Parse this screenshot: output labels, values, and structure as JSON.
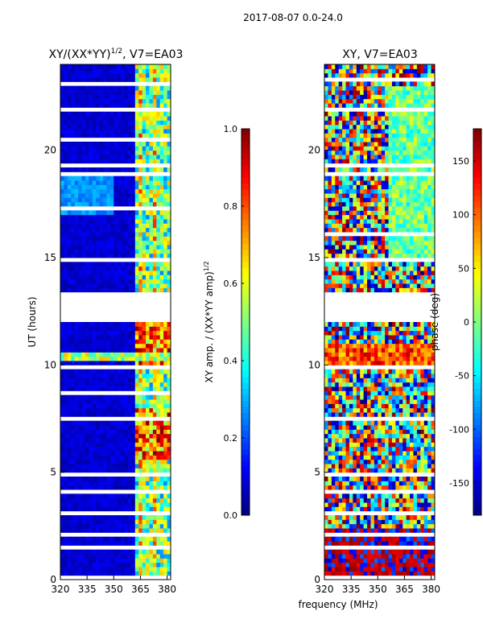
{
  "suptitle": "2017-08-07 0.0-24.0",
  "chart_data": [
    {
      "type": "heatmap",
      "title_main": "XY/(XX*YY)",
      "title_sup": "1/2",
      "title_tail": ", V7=EA03",
      "xlabel": "",
      "ylabel": "UT (hours)",
      "xlim": [
        320,
        382
      ],
      "ylim": [
        0,
        24
      ],
      "xticks": [
        320,
        335,
        350,
        365,
        380
      ],
      "yticks": [
        0,
        5,
        10,
        15,
        20
      ],
      "colorbar": {
        "label_main": "XY amp. / (XX*YY amp)",
        "label_sup": "1/2",
        "range": [
          0.0,
          1.0
        ],
        "ticks": [
          "0.0",
          "0.2",
          "0.4",
          "0.6",
          "0.8",
          "1.0"
        ]
      }
    },
    {
      "type": "heatmap",
      "title": "XY, V7=EA03",
      "xlabel": "frequency (MHz)",
      "ylabel": "",
      "xlim": [
        320,
        382
      ],
      "ylim": [
        0,
        24
      ],
      "xticks": [
        320,
        335,
        350,
        365,
        380
      ],
      "yticks": [
        0,
        5,
        10,
        15,
        20
      ],
      "colorbar": {
        "label": "phase (deg)",
        "range": [
          -180,
          180
        ],
        "ticks": [
          -150,
          -100,
          -50,
          0,
          50,
          100,
          150
        ]
      }
    }
  ]
}
